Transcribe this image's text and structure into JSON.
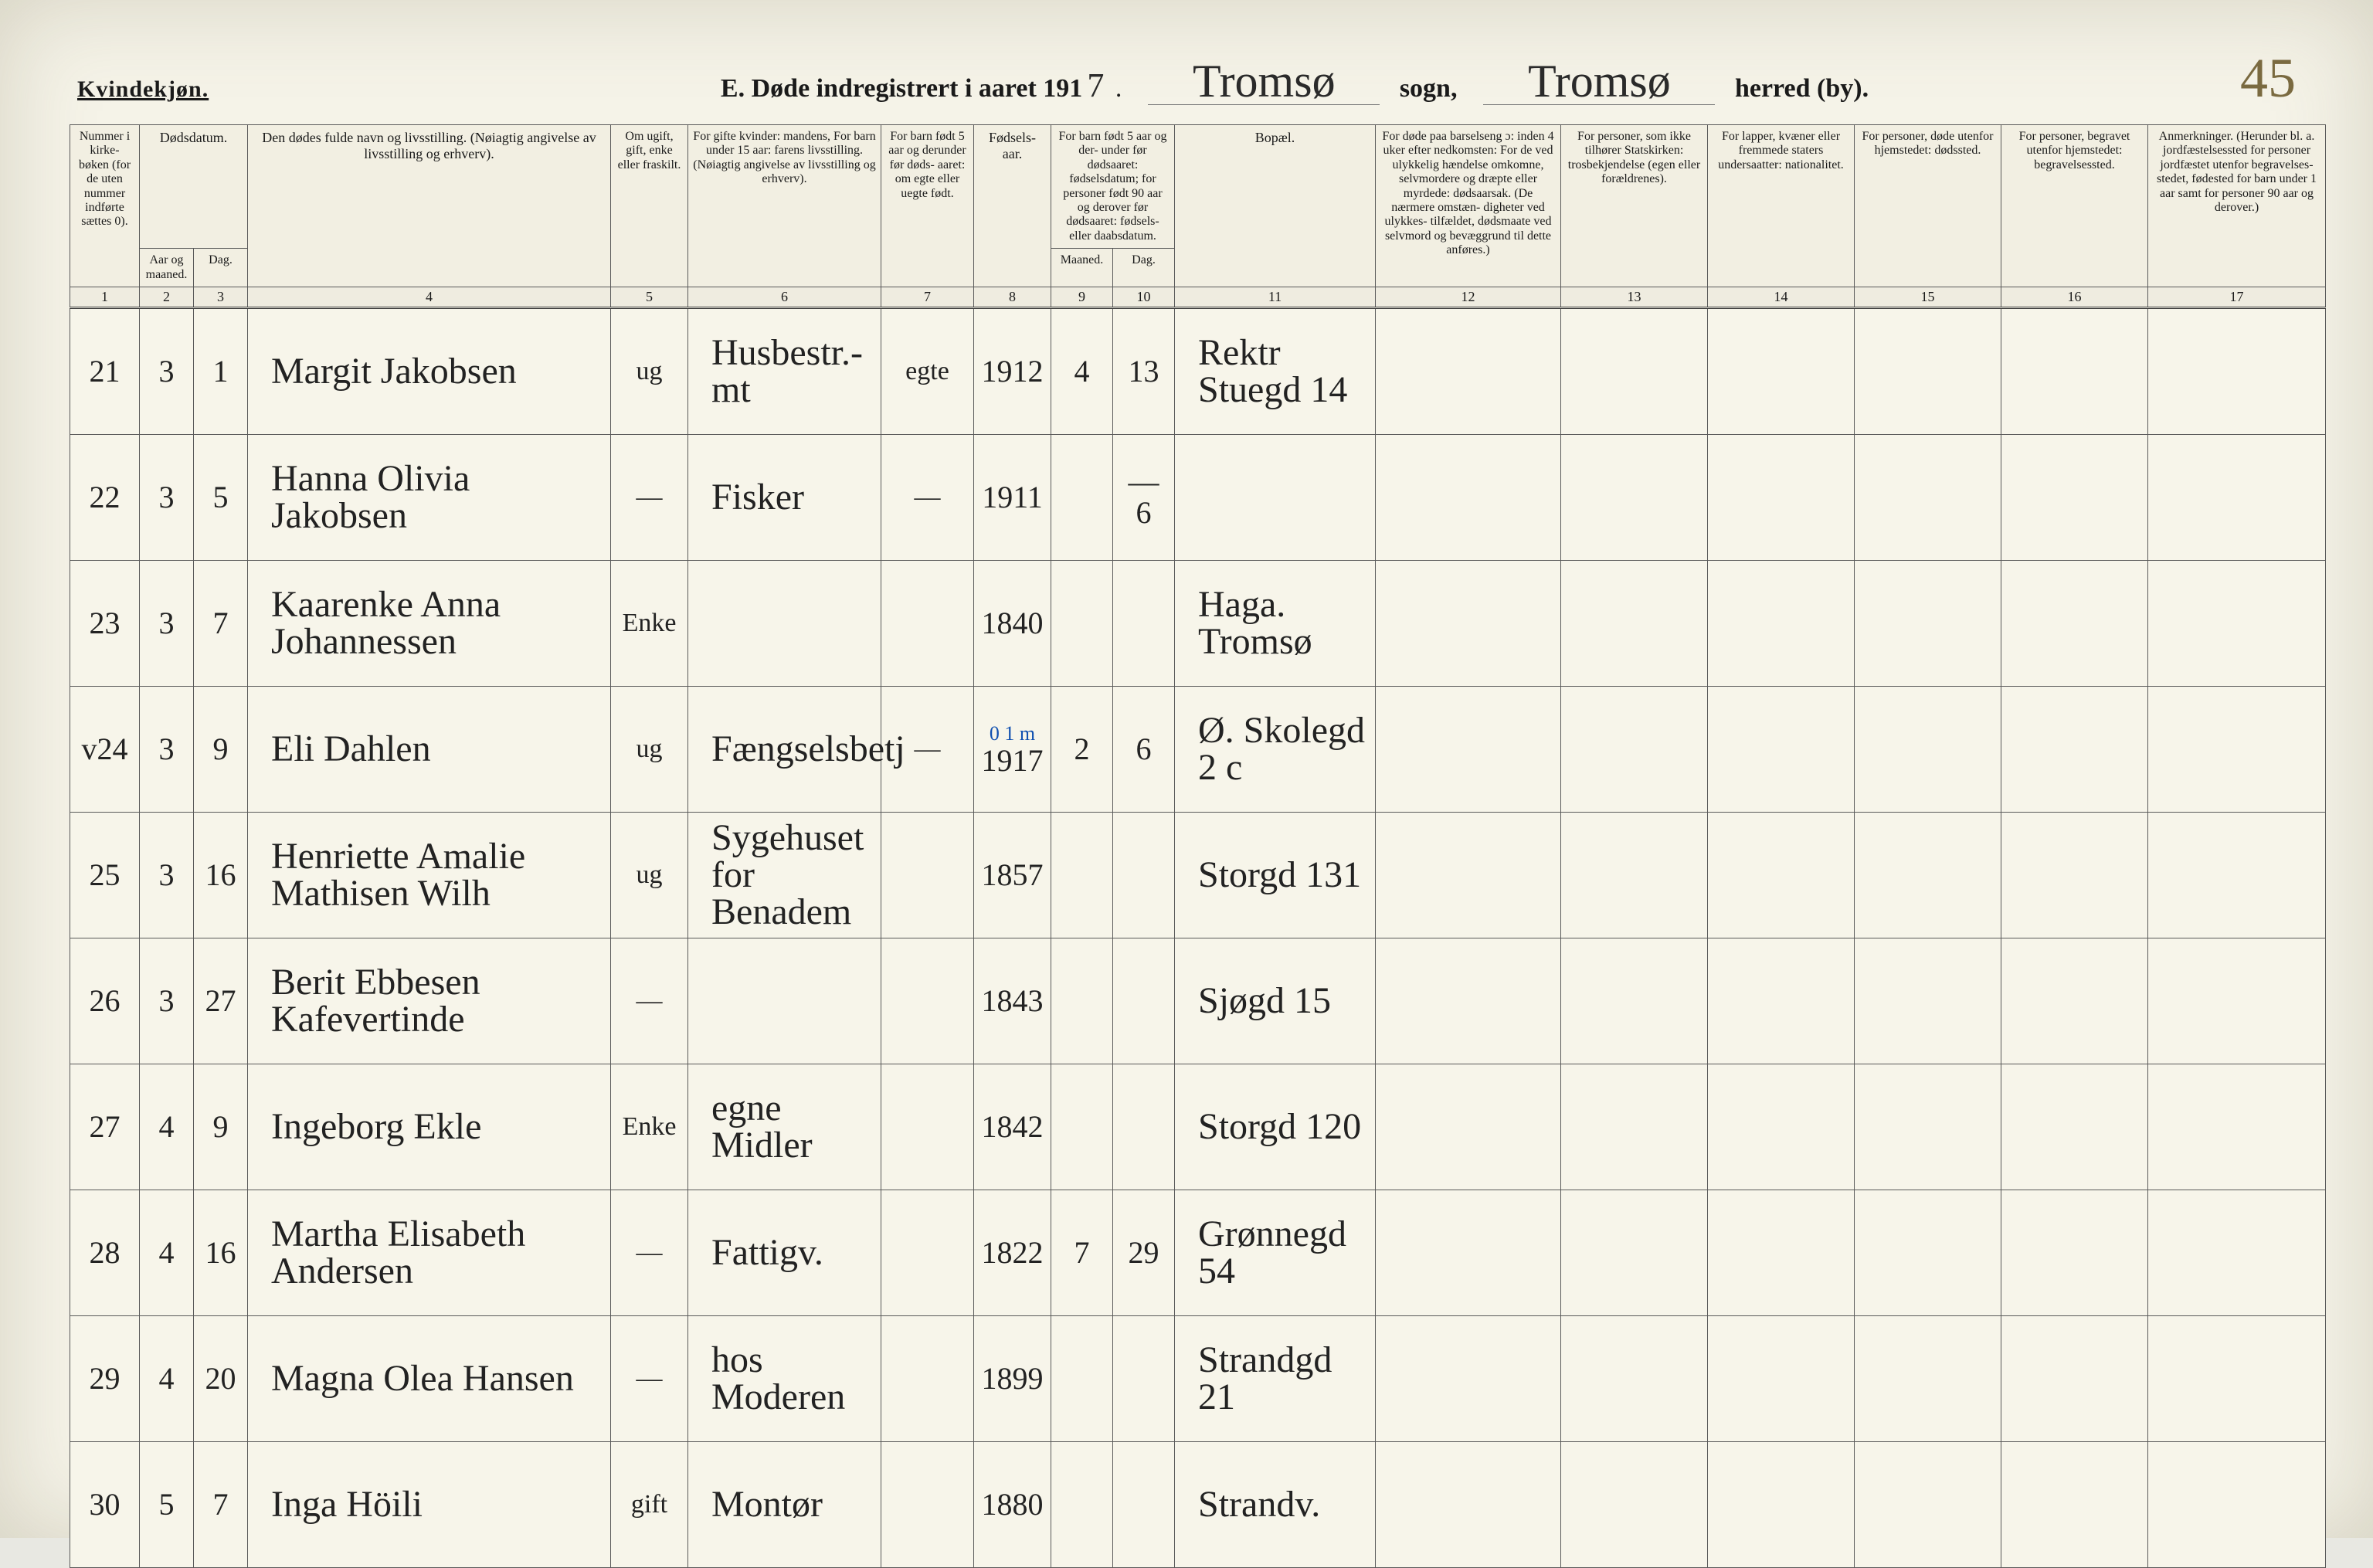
{
  "header": {
    "gender_label": "Kvindekjøn.",
    "title_prefix": "E.  Døde indregistrert i aaret 191",
    "year_suffix": "7",
    "sogn_value": "Tromsø",
    "sogn_label": "sogn,",
    "herred_value": "Tromsø",
    "herred_label": "herred (by).",
    "page_number": "45"
  },
  "columns": {
    "c1": "Nummer i kirke- bøken (for de uten nummer indførte sættes 0).",
    "c2_group": "Dødsdatum.",
    "c2": "Aar og maaned.",
    "c3": "Dag.",
    "c4": "Den dødes fulde navn og livsstilling. (Nøiagtig angivelse av livsstilling og erhverv).",
    "c5": "Om ugift, gift, enke eller fraskilt.",
    "c6": "For gifte kvinder: mandens,\nFor barn under 15 aar: farens livsstilling. (Nøiagtig angivelse av livsstilling og erhverv).",
    "c7": "For barn født 5 aar og derunder før døds- aaret: om egte eller uegte født.",
    "c8": "Fødsels- aar.",
    "c9_10_group": "For barn født 5 aar og der- under før dødsaaret: fødselsdatum; for personer født 90 aar og derover før dødsaaret: fødsels- eller daabsdatum.",
    "c9": "Maaned.",
    "c10": "Dag.",
    "c11": "Bopæl.",
    "c12": "For døde paa barselseng ɔ: inden 4 uker efter nedkomsten: For de ved ulykkelig hændelse omkomne, selvmordere og dræpte eller myrdede: dødsaarsak. (De nærmere omstæn- digheter ved ulykkes- tilfældet, dødsmaate ved selvmord og bevæggrund til dette anføres.)",
    "c13": "For personer, som ikke tilhører Statskirken: trosbekjendelse (egen eller forældrenes).",
    "c14": "For lapper, kvæner eller fremmede staters undersaatter: nationalitet.",
    "c15": "For personer, døde utenfor hjemstedet: dødssted.",
    "c16": "For personer, begravet utenfor hjemstedet: begravelsessted.",
    "c17": "Anmerkninger. (Herunder bl. a. jordfæstelsessted for personer jordfæstet utenfor begravelses- stedet, fødested for barn under 1 aar samt for personer 90 aar og derover.)"
  },
  "colnums": [
    "1",
    "2",
    "3",
    "4",
    "5",
    "6",
    "7",
    "8",
    "9",
    "10",
    "11",
    "12",
    "13",
    "14",
    "15",
    "16",
    "17"
  ],
  "rows": [
    {
      "num": "21",
      "mon": "3",
      "day": "1",
      "name": "Margit Jakobsen",
      "status": "ug",
      "occ": "Husbestr.-mt",
      "legit": "egte",
      "birth": "1912",
      "bm": "4",
      "bd": "13",
      "res": "Rektr Stuegd 14",
      "annot": ""
    },
    {
      "num": "22",
      "mon": "3",
      "day": "5",
      "name": "Hanna Olivia Jakobsen",
      "status": "—",
      "occ": "Fisker",
      "legit": "—",
      "birth": "1911",
      "bm": "",
      "bd": "— 6",
      "res": "",
      "annot": ""
    },
    {
      "num": "23",
      "mon": "3",
      "day": "7",
      "name": "Kaarenke Anna Johannessen",
      "status": "Enke",
      "occ": "",
      "legit": "",
      "birth": "1840",
      "bm": "",
      "bd": "",
      "res": "Haga. Tromsø",
      "annot": ""
    },
    {
      "num": "v24",
      "mon": "3",
      "day": "9",
      "name": "Eli Dahlen",
      "status": "ug",
      "occ": "Fængselsbetj",
      "legit": "—",
      "birth": "1917",
      "bm": "2",
      "bd": "6",
      "res": "Ø. Skolegd 2 c",
      "annot": "0 1 m"
    },
    {
      "num": "25",
      "mon": "3",
      "day": "16",
      "name": "Henriette Amalie Mathisen Wilh",
      "status": "ug",
      "occ": "Sygehuset for Benadem",
      "legit": "",
      "birth": "1857",
      "bm": "",
      "bd": "",
      "res": "Storgd 131",
      "annot": ""
    },
    {
      "num": "26",
      "mon": "3",
      "day": "27",
      "name": "Berit Ebbesen  Kafevertinde",
      "status": "—",
      "occ": "",
      "legit": "",
      "birth": "1843",
      "bm": "",
      "bd": "",
      "res": "Sjøgd 15",
      "annot": ""
    },
    {
      "num": "27",
      "mon": "4",
      "day": "9",
      "name": "Ingeborg Ekle",
      "status": "Enke",
      "occ": "egne Midler",
      "legit": "",
      "birth": "1842",
      "bm": "",
      "bd": "",
      "res": "Storgd 120",
      "annot": ""
    },
    {
      "num": "28",
      "mon": "4",
      "day": "16",
      "name": "Martha Elisabeth Andersen",
      "status": "—",
      "occ": "Fattigv.",
      "legit": "",
      "birth": "1822",
      "bm": "7",
      "bd": "29",
      "res": "Grønnegd 54",
      "annot": ""
    },
    {
      "num": "29",
      "mon": "4",
      "day": "20",
      "name": "Magna Olea Hansen",
      "status": "—",
      "occ": "hos Moderen",
      "legit": "",
      "birth": "1899",
      "bm": "",
      "bd": "",
      "res": "Strandgd 21",
      "annot": ""
    },
    {
      "num": "30",
      "mon": "5",
      "day": "7",
      "name": "Inga Höili",
      "status": "gift",
      "occ": "Montør",
      "legit": "",
      "birth": "1880",
      "bm": "",
      "bd": "",
      "res": "Strandv.",
      "annot": ""
    }
  ]
}
